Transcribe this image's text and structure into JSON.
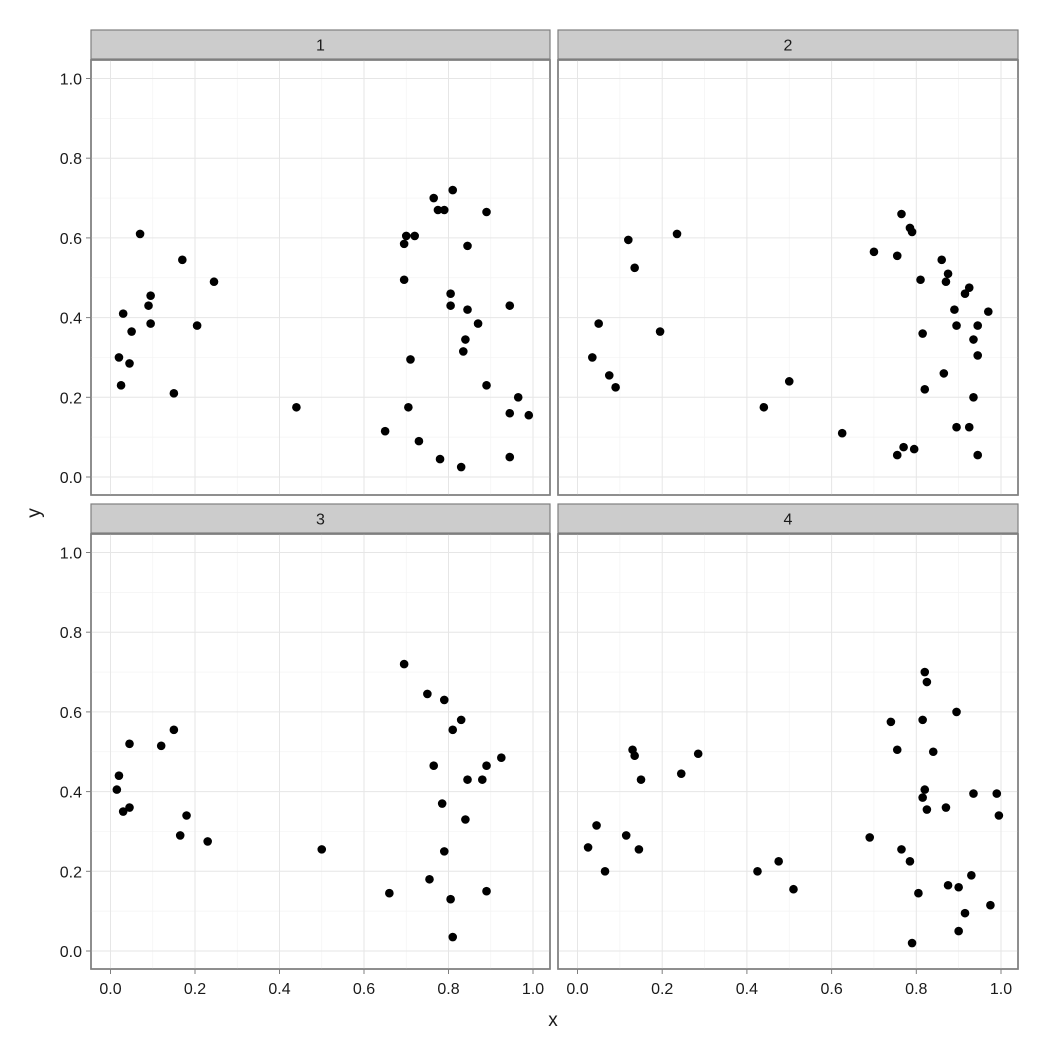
{
  "chart_data": {
    "type": "scatter",
    "title": "",
    "xlabel": "x",
    "ylabel": "y",
    "xlim": [
      0.0,
      1.0
    ],
    "ylim": [
      0.0,
      1.0
    ],
    "x_ticks": [
      "0.0",
      "0.2",
      "0.4",
      "0.6",
      "0.8",
      "1.0"
    ],
    "y_ticks": [
      "0.0",
      "0.2",
      "0.4",
      "0.6",
      "0.8",
      "1.0"
    ],
    "grid": true,
    "facets": "2x2",
    "point_color": "#000000",
    "panels": [
      {
        "label": "1",
        "points": [
          [
            0.07,
            0.61
          ],
          [
            0.17,
            0.545
          ],
          [
            0.245,
            0.49
          ],
          [
            0.03,
            0.41
          ],
          [
            0.095,
            0.455
          ],
          [
            0.09,
            0.43
          ],
          [
            0.05,
            0.365
          ],
          [
            0.095,
            0.385
          ],
          [
            0.205,
            0.38
          ],
          [
            0.02,
            0.3
          ],
          [
            0.045,
            0.285
          ],
          [
            0.025,
            0.23
          ],
          [
            0.15,
            0.21
          ],
          [
            0.44,
            0.175
          ],
          [
            0.65,
            0.115
          ],
          [
            0.73,
            0.09
          ],
          [
            0.78,
            0.045
          ],
          [
            0.83,
            0.025
          ],
          [
            0.945,
            0.05
          ],
          [
            0.99,
            0.155
          ],
          [
            0.945,
            0.16
          ],
          [
            0.965,
            0.2
          ],
          [
            0.89,
            0.23
          ],
          [
            0.705,
            0.175
          ],
          [
            0.71,
            0.295
          ],
          [
            0.835,
            0.315
          ],
          [
            0.84,
            0.345
          ],
          [
            0.87,
            0.385
          ],
          [
            0.845,
            0.42
          ],
          [
            0.805,
            0.43
          ],
          [
            0.945,
            0.43
          ],
          [
            0.805,
            0.46
          ],
          [
            0.695,
            0.495
          ],
          [
            0.695,
            0.585
          ],
          [
            0.7,
            0.605
          ],
          [
            0.72,
            0.605
          ],
          [
            0.845,
            0.58
          ],
          [
            0.89,
            0.665
          ],
          [
            0.775,
            0.67
          ],
          [
            0.79,
            0.67
          ],
          [
            0.765,
            0.7
          ],
          [
            0.81,
            0.72
          ]
        ]
      },
      {
        "label": "2",
        "points": [
          [
            0.12,
            0.595
          ],
          [
            0.235,
            0.61
          ],
          [
            0.135,
            0.525
          ],
          [
            0.05,
            0.385
          ],
          [
            0.195,
            0.365
          ],
          [
            0.035,
            0.3
          ],
          [
            0.075,
            0.255
          ],
          [
            0.09,
            0.225
          ],
          [
            0.44,
            0.175
          ],
          [
            0.5,
            0.24
          ],
          [
            0.625,
            0.11
          ],
          [
            0.7,
            0.565
          ],
          [
            0.755,
            0.555
          ],
          [
            0.765,
            0.66
          ],
          [
            0.785,
            0.625
          ],
          [
            0.79,
            0.615
          ],
          [
            0.81,
            0.495
          ],
          [
            0.86,
            0.545
          ],
          [
            0.875,
            0.51
          ],
          [
            0.87,
            0.49
          ],
          [
            0.925,
            0.475
          ],
          [
            0.915,
            0.46
          ],
          [
            0.89,
            0.42
          ],
          [
            0.97,
            0.415
          ],
          [
            0.945,
            0.38
          ],
          [
            0.895,
            0.38
          ],
          [
            0.815,
            0.36
          ],
          [
            0.935,
            0.345
          ],
          [
            0.945,
            0.305
          ],
          [
            0.865,
            0.26
          ],
          [
            0.82,
            0.22
          ],
          [
            0.935,
            0.2
          ],
          [
            0.895,
            0.125
          ],
          [
            0.925,
            0.125
          ],
          [
            0.755,
            0.055
          ],
          [
            0.77,
            0.075
          ],
          [
            0.795,
            0.07
          ],
          [
            0.945,
            0.055
          ]
        ]
      },
      {
        "label": "3",
        "points": [
          [
            0.045,
            0.52
          ],
          [
            0.12,
            0.515
          ],
          [
            0.15,
            0.555
          ],
          [
            0.02,
            0.44
          ],
          [
            0.015,
            0.405
          ],
          [
            0.045,
            0.36
          ],
          [
            0.03,
            0.35
          ],
          [
            0.18,
            0.34
          ],
          [
            0.165,
            0.29
          ],
          [
            0.23,
            0.275
          ],
          [
            0.5,
            0.255
          ],
          [
            0.66,
            0.145
          ],
          [
            0.695,
            0.72
          ],
          [
            0.75,
            0.645
          ],
          [
            0.79,
            0.63
          ],
          [
            0.83,
            0.58
          ],
          [
            0.81,
            0.555
          ],
          [
            0.765,
            0.465
          ],
          [
            0.89,
            0.465
          ],
          [
            0.925,
            0.485
          ],
          [
            0.845,
            0.43
          ],
          [
            0.88,
            0.43
          ],
          [
            0.785,
            0.37
          ],
          [
            0.84,
            0.33
          ],
          [
            0.79,
            0.25
          ],
          [
            0.755,
            0.18
          ],
          [
            0.805,
            0.13
          ],
          [
            0.89,
            0.15
          ],
          [
            0.81,
            0.035
          ]
        ]
      },
      {
        "label": "4",
        "points": [
          [
            0.13,
            0.505
          ],
          [
            0.135,
            0.49
          ],
          [
            0.285,
            0.495
          ],
          [
            0.15,
            0.43
          ],
          [
            0.245,
            0.445
          ],
          [
            0.045,
            0.315
          ],
          [
            0.115,
            0.29
          ],
          [
            0.025,
            0.26
          ],
          [
            0.145,
            0.255
          ],
          [
            0.065,
            0.2
          ],
          [
            0.425,
            0.2
          ],
          [
            0.475,
            0.225
          ],
          [
            0.51,
            0.155
          ],
          [
            0.69,
            0.285
          ],
          [
            0.74,
            0.575
          ],
          [
            0.755,
            0.505
          ],
          [
            0.765,
            0.255
          ],
          [
            0.785,
            0.225
          ],
          [
            0.79,
            0.02
          ],
          [
            0.805,
            0.145
          ],
          [
            0.815,
            0.58
          ],
          [
            0.82,
            0.7
          ],
          [
            0.825,
            0.675
          ],
          [
            0.84,
            0.5
          ],
          [
            0.82,
            0.405
          ],
          [
            0.815,
            0.385
          ],
          [
            0.825,
            0.355
          ],
          [
            0.87,
            0.36
          ],
          [
            0.875,
            0.165
          ],
          [
            0.9,
            0.16
          ],
          [
            0.895,
            0.6
          ],
          [
            0.935,
            0.395
          ],
          [
            0.93,
            0.19
          ],
          [
            0.915,
            0.095
          ],
          [
            0.9,
            0.05
          ],
          [
            0.975,
            0.115
          ],
          [
            0.99,
            0.395
          ],
          [
            0.995,
            0.34
          ]
        ]
      }
    ]
  }
}
